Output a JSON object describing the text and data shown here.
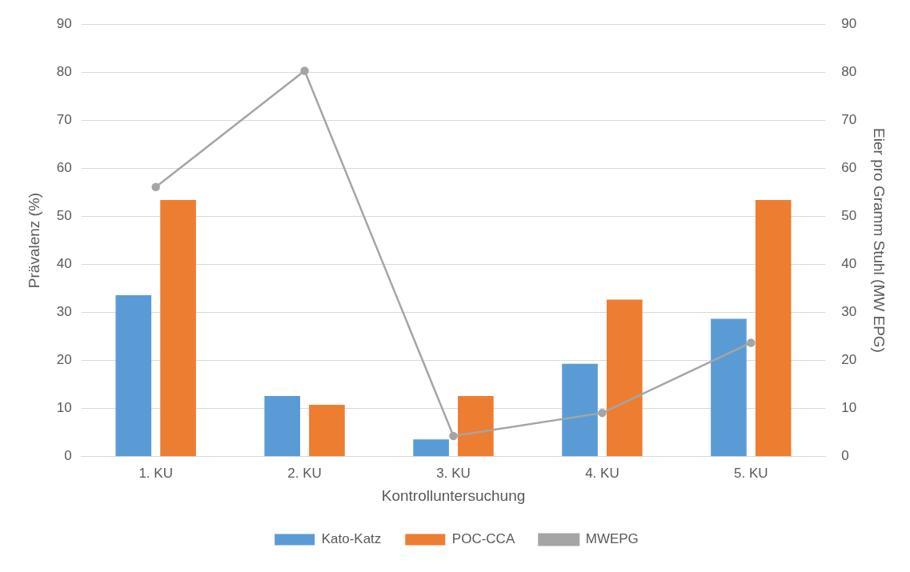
{
  "chart_data": {
    "type": "bar",
    "xlabel": "Kontrolluntersuchung",
    "ylabel": "Prävalenz (%)",
    "y2label": "Eier pro Gramm Stuhl (MW EPG)",
    "categories": [
      "1. KU",
      "2. KU",
      "3. KU",
      "4. KU",
      "5. KU"
    ],
    "series": [
      {
        "name": "Kato-Katz",
        "color": "#5b9bd5",
        "values": [
          33.6,
          12.6,
          3.6,
          19.3,
          28.7
        ]
      },
      {
        "name": "POC-CCA",
        "color": "#ed7d31",
        "values": [
          53.4,
          10.8,
          12.6,
          32.7,
          53.4
        ]
      },
      {
        "name": "MWEPG",
        "type": "line",
        "axis": "y2",
        "color": "#a5a5a5",
        "marker": "circle",
        "values": [
          56.1,
          80.3,
          4.3,
          9.1,
          23.7
        ]
      }
    ],
    "ylim": [
      0,
      90
    ],
    "yticks": [
      0,
      10,
      20,
      30,
      40,
      50,
      60,
      70,
      80,
      90
    ],
    "y2lim": [
      0,
      90
    ],
    "y2ticks": [
      0,
      10,
      20,
      30,
      40,
      50,
      60,
      70,
      80,
      90
    ],
    "grid": "y",
    "legend": "bottom"
  }
}
